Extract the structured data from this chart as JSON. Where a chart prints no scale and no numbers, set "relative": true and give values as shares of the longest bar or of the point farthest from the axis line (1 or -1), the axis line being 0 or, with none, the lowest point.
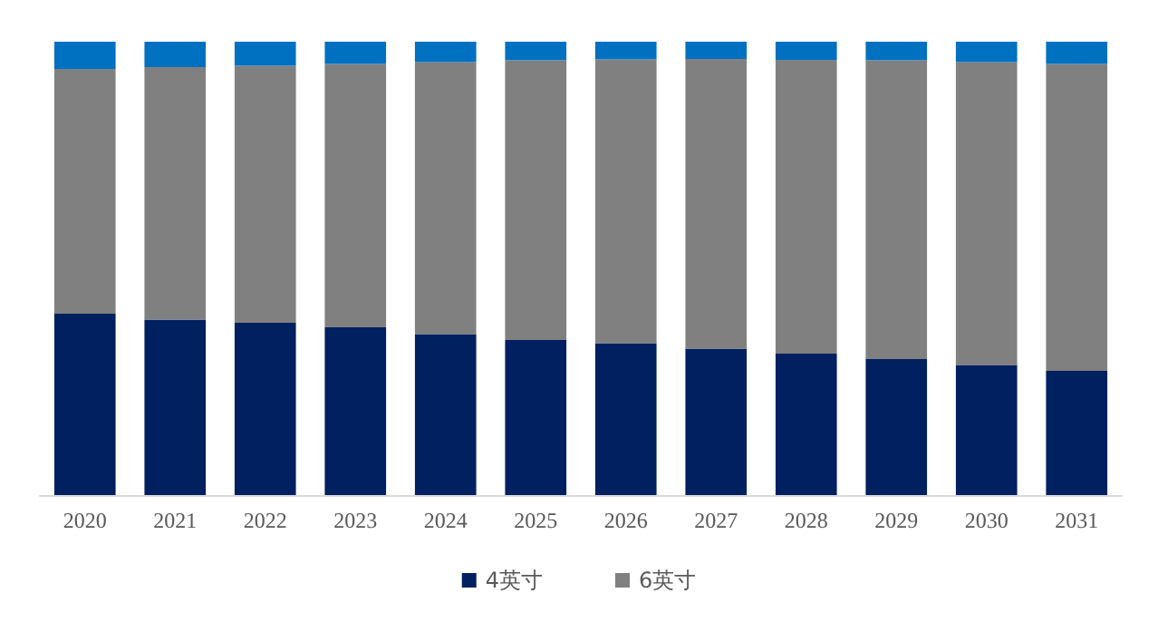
{
  "chart_data": {
    "type": "bar",
    "stacked": true,
    "relative": true,
    "legend": "bottom",
    "grid": false,
    "categories": [
      "2020",
      "2021",
      "2022",
      "2023",
      "2024",
      "2025",
      "2026",
      "2027",
      "2028",
      "2029",
      "2030",
      "2031"
    ],
    "series": [
      {
        "name": "4英寸",
        "color": "#002060",
        "values": [
          0.4,
          0.387,
          0.38,
          0.37,
          0.355,
          0.342,
          0.335,
          0.323,
          0.312,
          0.3,
          0.287,
          0.274
        ]
      },
      {
        "name": "6英寸",
        "color": "#808080",
        "values": [
          0.54,
          0.557,
          0.567,
          0.581,
          0.6,
          0.617,
          0.626,
          0.639,
          0.648,
          0.659,
          0.668,
          0.677
        ]
      },
      {
        "color": "#0070c0",
        "values": [
          0.06,
          0.056,
          0.053,
          0.049,
          0.045,
          0.041,
          0.039,
          0.038,
          0.04,
          0.041,
          0.045,
          0.049
        ]
      }
    ]
  }
}
